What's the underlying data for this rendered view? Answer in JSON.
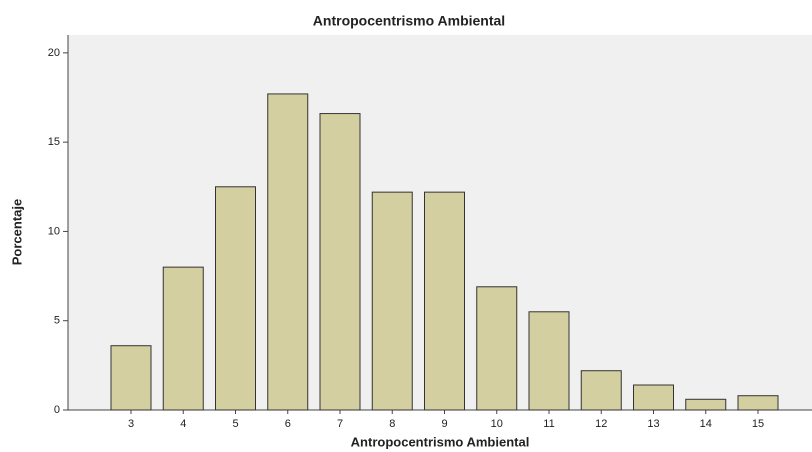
{
  "chart_data": {
    "type": "bar",
    "title": "Antropocentrismo Ambiental",
    "x_label": "Antropocentrismo Ambiental",
    "y_label": "Porcentaje",
    "categories": [
      "3",
      "4",
      "5",
      "6",
      "7",
      "8",
      "9",
      "10",
      "11",
      "12",
      "13",
      "14",
      "15"
    ],
    "values": [
      3.6,
      8.0,
      12.5,
      17.7,
      16.6,
      12.2,
      12.2,
      6.9,
      5.5,
      2.2,
      1.4,
      0.6,
      0.8
    ],
    "color": "#d4cfa0",
    "ylim": [
      0,
      21
    ],
    "yticks": [
      0,
      5,
      10,
      15,
      20
    ],
    "grid": false
  }
}
